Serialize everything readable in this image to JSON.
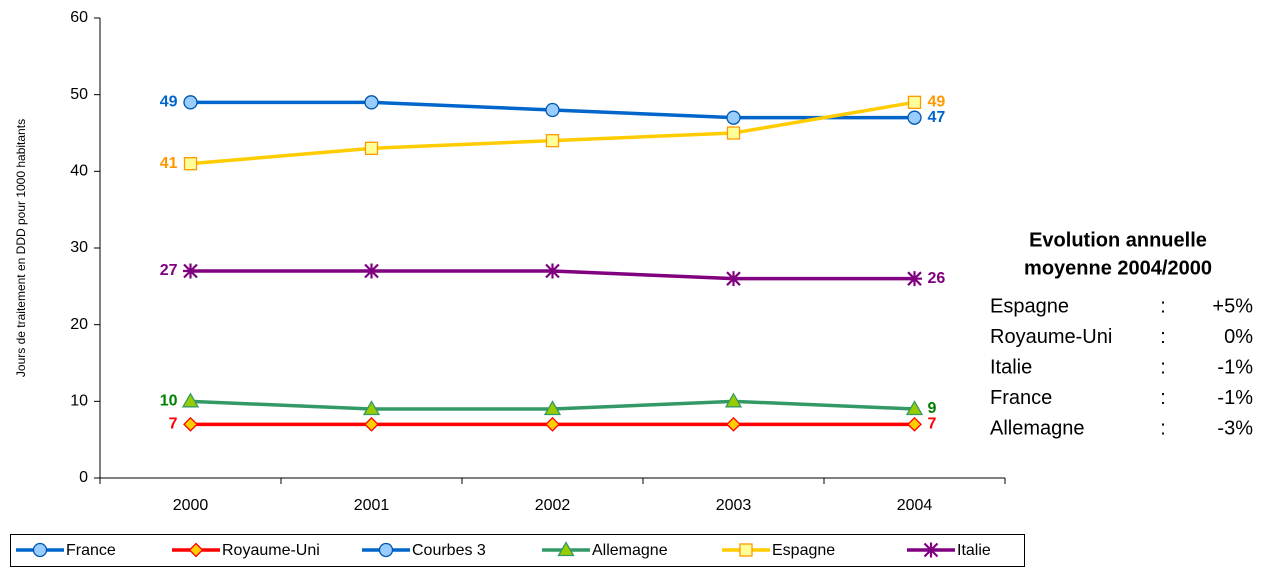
{
  "chart_data": {
    "type": "line",
    "y_label": "Jours de traitement en DDD pour 1000 habitants",
    "categories": [
      "2000",
      "2001",
      "2002",
      "2003",
      "2004"
    ],
    "ylim": [
      0,
      60
    ],
    "yticks": [
      0,
      10,
      20,
      30,
      40,
      50,
      60
    ],
    "data_labels": "first-last",
    "series": [
      {
        "name": "France",
        "color": "#0066cc",
        "marker": "circle",
        "marker_fill": "#99ccff",
        "label_color": "#0066cc",
        "values": [
          49,
          49,
          48,
          47,
          47
        ]
      },
      {
        "name": "Royaume-Uni",
        "color": "#ff0000",
        "marker": "diamond",
        "marker_fill": "#ffcc00",
        "label_color": "#ff0000",
        "values": [
          7,
          7,
          7,
          7,
          7
        ]
      },
      {
        "name": "Courbes 3",
        "color": "#0066cc",
        "marker": "circle",
        "marker_fill": "#99ccff",
        "label_color": "#0066cc",
        "values": [
          null,
          null,
          null,
          null,
          null
        ]
      },
      {
        "name": "Allemagne",
        "color": "#339966",
        "marker": "triangle",
        "marker_fill": "#99cc00",
        "label_color": "#008000",
        "values": [
          10,
          9,
          9,
          10,
          9
        ]
      },
      {
        "name": "Espagne",
        "color": "#ffcc00",
        "marker": "square",
        "marker_fill": "#ffff99",
        "label_color": "#ff9900",
        "values": [
          41,
          43,
          44,
          45,
          49
        ]
      },
      {
        "name": "Italie",
        "color": "#800080",
        "marker": "asterisk",
        "marker_fill": "#800080",
        "label_color": "#800080",
        "values": [
          27,
          27,
          27,
          26,
          26
        ]
      }
    ],
    "legend": "bottom",
    "annotation": {
      "title": [
        "Evolution annuelle",
        "moyenne 2004/2000"
      ],
      "separator": ":",
      "rows": [
        [
          "Espagne",
          "+5%"
        ],
        [
          "Royaume-Uni",
          "0%"
        ],
        [
          "Italie",
          "-1%"
        ],
        [
          "France",
          "-1%"
        ],
        [
          "Allemagne",
          "-3%"
        ]
      ]
    }
  }
}
